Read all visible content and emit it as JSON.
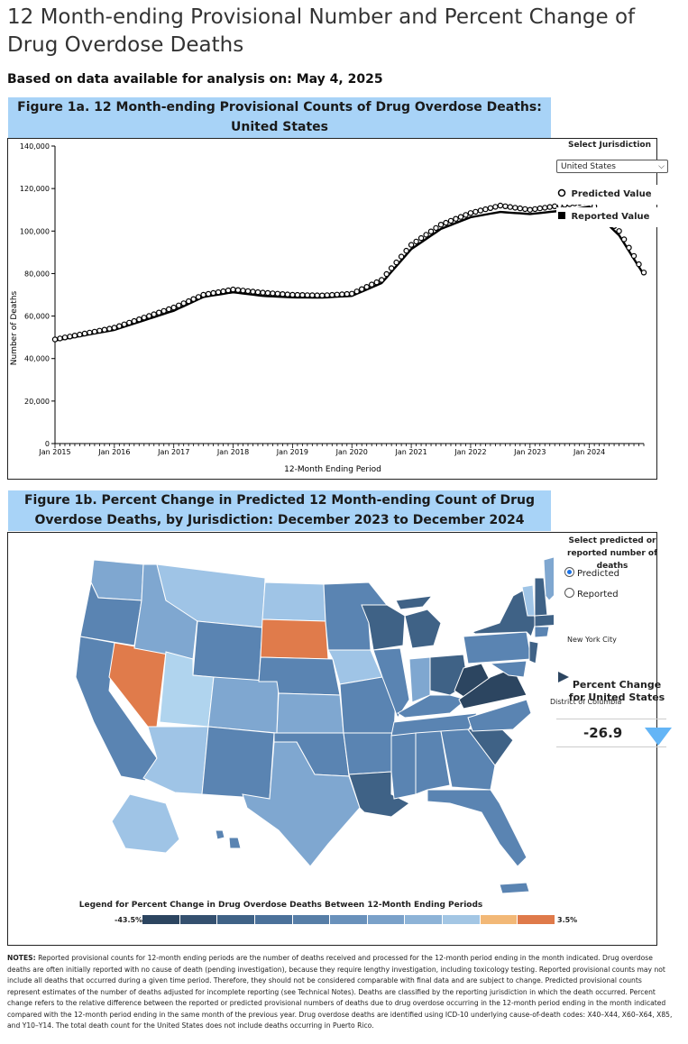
{
  "page": {
    "title": "12 Month-ending Provisional Number and Percent Change of Drug Overdose Deaths",
    "data_date": "Based on data available for analysis on: May 4, 2025"
  },
  "figure1a": {
    "heading": "Figure 1a. 12 Month-ending Provisional Counts of Drug Overdose Deaths: United States",
    "jurisdiction_label": "Select Jurisdiction",
    "jurisdiction_value": "United States",
    "legend_predicted": "Predicted Value",
    "legend_reported": "Reported Value"
  },
  "chart_data": {
    "type": "line",
    "title": "Figure 1a. 12 Month-ending Provisional Counts of Drug Overdose Deaths: United States",
    "xlabel": "12-Month Ending Period",
    "ylabel": "Number of Deaths",
    "ylim": [
      0,
      140000
    ],
    "y_ticks": [
      "0",
      "20,000",
      "40,000",
      "60,000",
      "80,000",
      "100,000",
      "120,000",
      "140,000"
    ],
    "x_ticks": [
      "Jan 2015",
      "Jan 2016",
      "Jan 2017",
      "Jan 2018",
      "Jan 2019",
      "Jan 2020",
      "Jan 2021",
      "Jan 2022",
      "Jan 2023",
      "Jan 2024"
    ],
    "x_start": "Jan 2015",
    "months": 120,
    "anchor_months": [
      0,
      12,
      24,
      30,
      36,
      42,
      48,
      54,
      60,
      66,
      72,
      78,
      84,
      90,
      96,
      102,
      108,
      114,
      119
    ],
    "predicted_anchor_values": [
      49000,
      54500,
      64000,
      70000,
      72500,
      71000,
      70000,
      69700,
      70500,
      77000,
      93500,
      103000,
      108500,
      112000,
      110000,
      112000,
      114000,
      100000,
      80500
    ],
    "reported_anchor_values": [
      48500,
      53500,
      62500,
      69000,
      71200,
      69500,
      68800,
      68700,
      69500,
      75500,
      91500,
      101000,
      106500,
      109000,
      108000,
      109500,
      111500,
      98000,
      79500
    ],
    "series": [
      {
        "name": "Predicted Value",
        "marker": "open-circle"
      },
      {
        "name": "Reported Value",
        "marker": "line"
      }
    ]
  },
  "figure1b": {
    "heading": "Figure 1b. Percent Change in Predicted 12 Month-ending Count of Drug Overdose Deaths, by Jurisdiction: December 2023 to December 2024",
    "radio_label": "Select predicted or reported number of deaths",
    "radio_predicted": "Predicted",
    "radio_reported": "Reported",
    "nyc_label": "New York City",
    "dc_label": "District of Columbia",
    "pc_title": "Percent Change for United States",
    "pc_value": "-26.9",
    "legend_title": "Legend for Percent Change in Drug Overdose Deaths Between 12-Month Ending Periods",
    "legend_min": "-43.5%",
    "legend_max": "3.5%",
    "legend_colors": [
      "#2c4560",
      "#34506f",
      "#3f6286",
      "#4b719a",
      "#577ea7",
      "#6991bb",
      "#7aa1c9",
      "#8db3d7",
      "#a3c6e4",
      "#f2b877",
      "#df7a4a"
    ],
    "colors": {
      "darkest": "#2c4560",
      "dark": "#3f6286",
      "mid": "#5a84b2",
      "light": "#7fa7d0",
      "lighter": "#9fc4e6",
      "pale": "#b0d4ee",
      "orange": "#e07b4b"
    }
  },
  "notes": {
    "label": "NOTES:",
    "text": "Reported provisional counts for 12-month ending periods are the number of deaths received and processed for the 12-month period ending in the month indicated. Drug overdose deaths are often initially reported with no cause of death (pending investigation), because they require lengthy investigation, including toxicology testing. Reported provisional counts may not include all deaths that occurred during a given time period. Therefore, they should not be considered comparable with final data and are subject to change. Predicted provisional counts represent estimates of the number of deaths adjusted for incomplete reporting (see Technical Notes). Deaths are classified by the reporting jurisdiction in which the death occurred. Percent change refers to the relative difference between the reported or predicted provisional numbers of deaths due to drug overdose occurring in the 12-month period ending in the month indicated compared with the 12-month period ending in the same month of the previous year. Drug overdose deaths are identified using ICD-10 underlying cause-of-death codes: X40–X44, X60–X64, X85, and Y10–Y14. The total death count for the United States does not include deaths occurring in Puerto Rico."
  }
}
